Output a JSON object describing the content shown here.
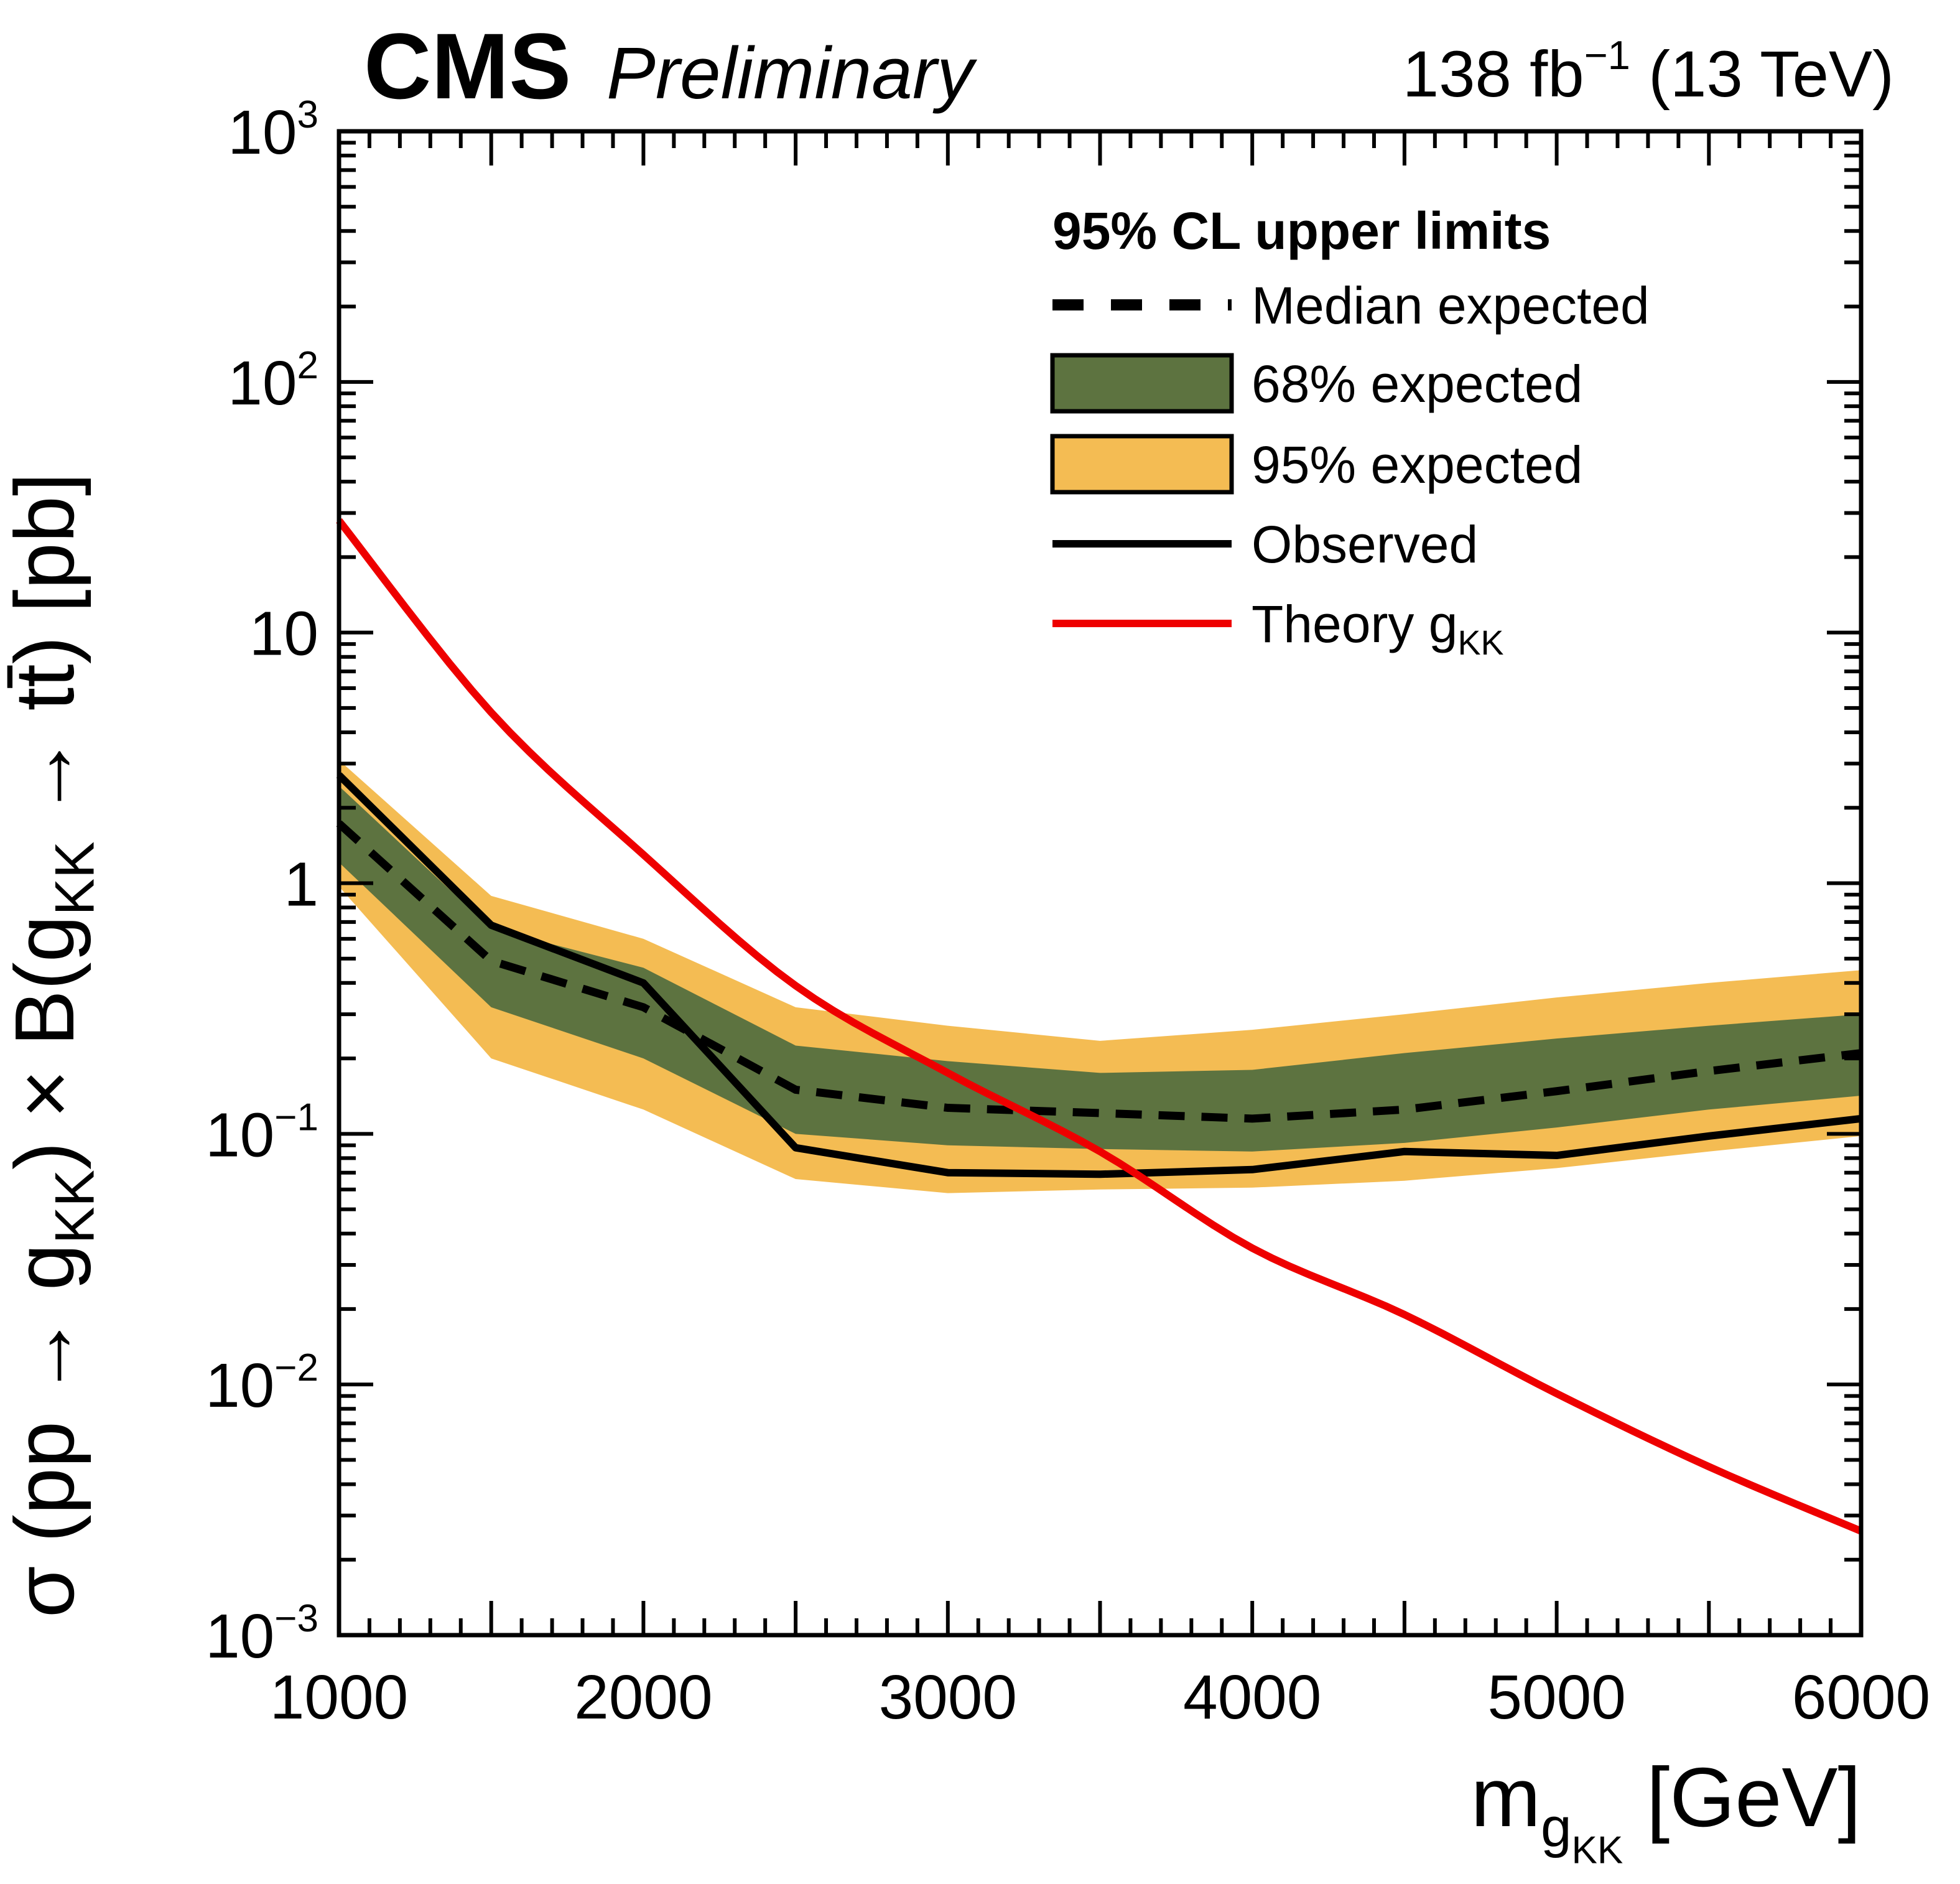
{
  "chart_data": {
    "type": "line",
    "title": {
      "cms": "CMS",
      "preliminary": "Preliminary",
      "lumi_segments": [
        {
          "t": "138 fb",
          "lvl": 0
        },
        {
          "t": "−1",
          "lvl": -1
        },
        {
          "t": " (13 TeV)",
          "lvl": 0
        }
      ]
    },
    "xlabel_segments": [
      {
        "t": "m",
        "lvl": 0
      },
      {
        "t": "g",
        "lvl": 1
      },
      {
        "t": "KK",
        "lvl": 2
      },
      {
        "t": " [GeV]",
        "lvl": 0
      }
    ],
    "ylabel_segments": [
      {
        "t": "σ (pp → g",
        "lvl": 0
      },
      {
        "t": "KK",
        "lvl": 1
      },
      {
        "t": ") × B(g",
        "lvl": 0
      },
      {
        "t": "KK",
        "lvl": 1
      },
      {
        "t": " → tt̄) [pb]",
        "lvl": 0
      }
    ],
    "axes": {
      "x": {
        "min": 1000,
        "max": 6000,
        "log": false,
        "major_tick_step": 500,
        "minor_tick_step": 100,
        "label_step": 1000,
        "tick_labels": [
          "1000",
          "2000",
          "3000",
          "4000",
          "5000",
          "6000"
        ]
      },
      "y": {
        "min": 0.001,
        "max": 1000,
        "log": true,
        "tick_labels": [
          {
            "v": 1000,
            "base": "10",
            "exp": "3"
          },
          {
            "v": 100,
            "base": "10",
            "exp": "2"
          },
          {
            "v": 10,
            "base": "10",
            "exp": ""
          },
          {
            "v": 1,
            "base": "1",
            "exp": ""
          },
          {
            "v": 0.1,
            "base": "10",
            "exp": "−1"
          },
          {
            "v": 0.01,
            "base": "10",
            "exp": "−2"
          },
          {
            "v": 0.001,
            "base": "10",
            "exp": "−3"
          }
        ]
      }
    },
    "legend": {
      "header": "95% CL upper limits",
      "entries": [
        {
          "label_segments": [
            {
              "t": "Median expected",
              "lvl": 0
            }
          ],
          "swatch": "dash",
          "color": "black"
        },
        {
          "label_segments": [
            {
              "t": "68% expected",
              "lvl": 0
            }
          ],
          "swatch": "box",
          "color": "green"
        },
        {
          "label_segments": [
            {
              "t": "95% expected",
              "lvl": 0
            }
          ],
          "swatch": "box",
          "color": "yellow"
        },
        {
          "label_segments": [
            {
              "t": "Observed",
              "lvl": 0
            }
          ],
          "swatch": "line",
          "color": "black"
        },
        {
          "label_segments": [
            {
              "t": "Theory g",
              "lvl": 0
            },
            {
              "t": "KK",
              "lvl": 1
            }
          ],
          "swatch": "line",
          "color": "red"
        }
      ]
    },
    "colors": {
      "green": "#5d7340",
      "yellow": "#f4bc53",
      "red": "#ee0000",
      "black": "#000000"
    },
    "masses": [
      1000,
      1500,
      2000,
      2500,
      3000,
      3500,
      4000,
      4500,
      5000,
      5500,
      6000
    ],
    "series": {
      "band95_high": [
        3.1,
        0.89,
        0.6,
        0.32,
        0.27,
        0.235,
        0.26,
        0.3,
        0.35,
        0.4,
        0.45
      ],
      "band68_high": [
        2.44,
        0.66,
        0.46,
        0.225,
        0.195,
        0.175,
        0.18,
        0.21,
        0.24,
        0.27,
        0.3
      ],
      "median_expected": [
        1.73,
        0.49,
        0.32,
        0.15,
        0.127,
        0.121,
        0.115,
        0.125,
        0.148,
        0.178,
        0.21
      ],
      "band68_low": [
        1.21,
        0.32,
        0.2,
        0.1,
        0.09,
        0.087,
        0.085,
        0.092,
        0.106,
        0.125,
        0.142
      ],
      "band95_low": [
        0.97,
        0.2,
        0.125,
        0.066,
        0.058,
        0.06,
        0.061,
        0.065,
        0.073,
        0.085,
        0.098
      ],
      "observed": [
        2.7,
        0.68,
        0.4,
        0.088,
        0.07,
        0.069,
        0.072,
        0.085,
        0.082,
        0.098,
        0.115
      ],
      "theory": [
        28,
        4.8,
        1.3,
        0.39,
        0.175,
        0.085,
        0.035,
        0.019,
        0.0092,
        0.0047,
        0.0026
      ]
    }
  }
}
